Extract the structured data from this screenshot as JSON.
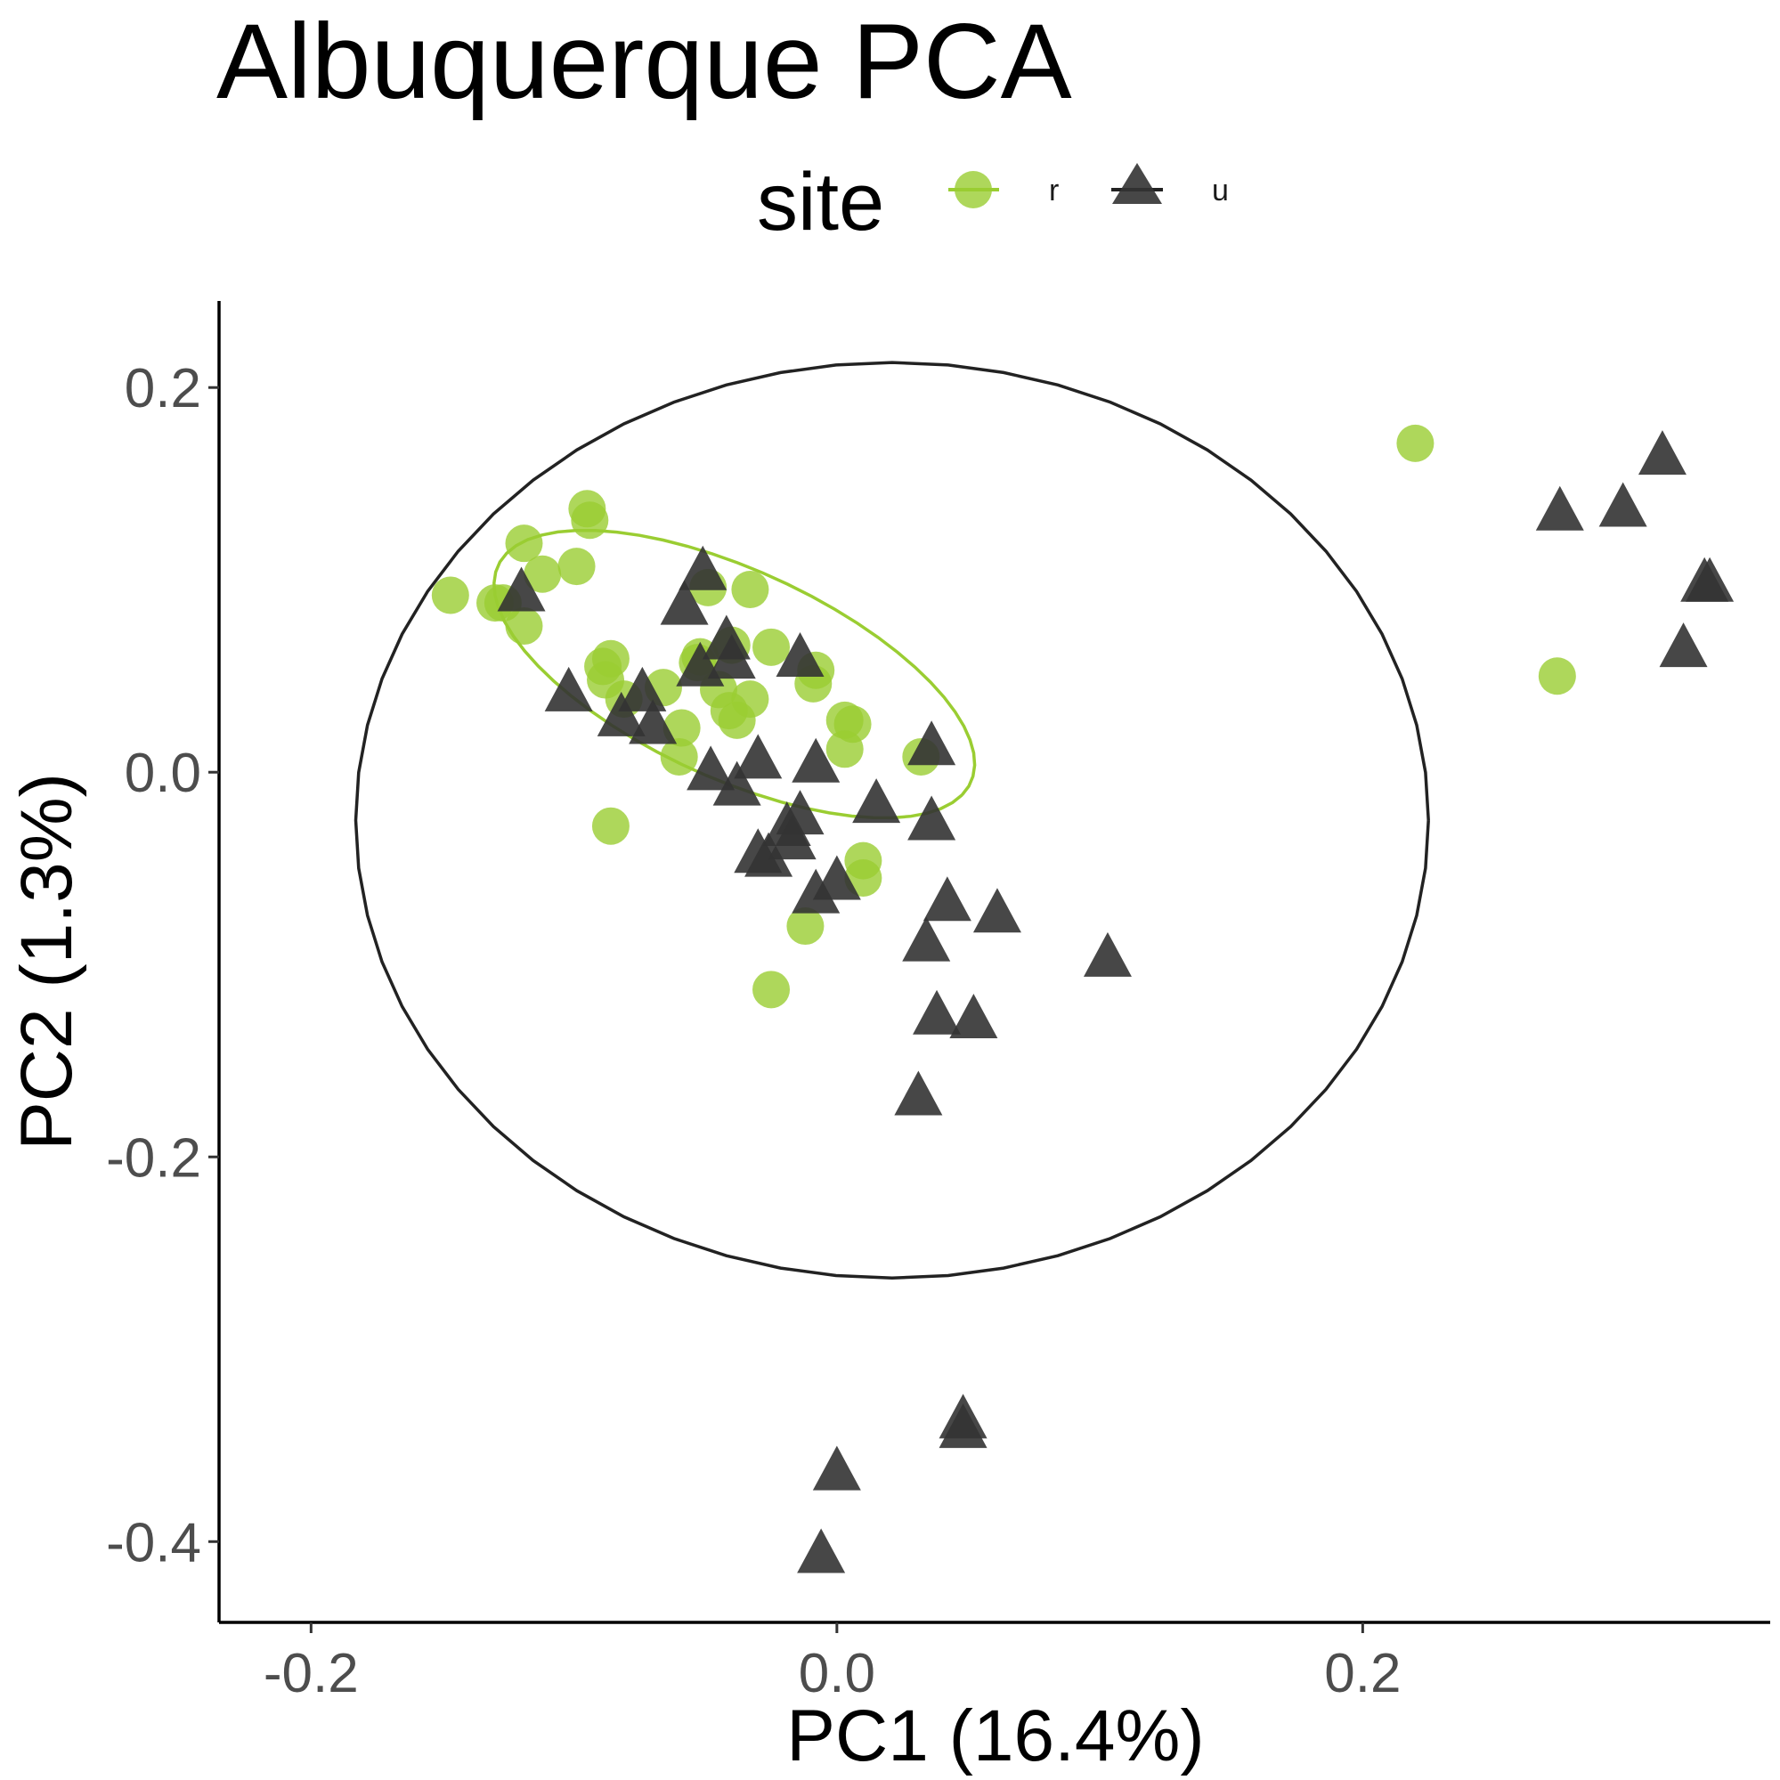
{
  "chart_data": {
    "type": "scatter",
    "title": "Albuquerque PCA",
    "xlabel": "PC1 (16.4%)",
    "ylabel": "PC2 (1.3%)",
    "xlim": [
      -0.235,
      0.355
    ],
    "ylim": [
      -0.442,
      0.245
    ],
    "xticks": [
      -0.2,
      0.0,
      0.2
    ],
    "xtick_labels": [
      "-0.2",
      "0.0",
      "0.2"
    ],
    "yticks": [
      0.2,
      0.0,
      -0.2,
      -0.4
    ],
    "ytick_labels": [
      "0.2",
      "0.0",
      "-0.2",
      "-0.4"
    ],
    "grid": false,
    "legend": {
      "title": "site",
      "position": "top",
      "entries": [
        {
          "label": "r",
          "shape": "circle",
          "color": "#9acd32"
        },
        {
          "label": "u",
          "shape": "triangle",
          "color": "#333333"
        }
      ]
    },
    "series": [
      {
        "name": "r",
        "shape": "circle",
        "color": "#9acd32",
        "points": [
          [
            -0.147,
            0.092
          ],
          [
            -0.13,
            0.088
          ],
          [
            -0.127,
            0.088
          ],
          [
            -0.119,
            0.119
          ],
          [
            -0.119,
            0.076
          ],
          [
            -0.112,
            0.103
          ],
          [
            -0.099,
            0.107
          ],
          [
            -0.095,
            0.137
          ],
          [
            -0.094,
            0.131
          ],
          [
            -0.086,
            0.059
          ],
          [
            -0.089,
            0.055
          ],
          [
            -0.088,
            0.048
          ],
          [
            -0.081,
            0.038
          ],
          [
            -0.066,
            0.044
          ],
          [
            -0.059,
            0.023
          ],
          [
            -0.06,
            0.008
          ],
          [
            -0.053,
            0.057
          ],
          [
            -0.052,
            0.06
          ],
          [
            -0.049,
            0.096
          ],
          [
            -0.045,
            0.043
          ],
          [
            -0.04,
            0.066
          ],
          [
            -0.041,
            0.032
          ],
          [
            -0.038,
            0.027
          ],
          [
            -0.033,
            0.095
          ],
          [
            -0.033,
            0.038
          ],
          [
            -0.025,
            0.065
          ],
          [
            -0.008,
            0.053
          ],
          [
            -0.009,
            0.046
          ],
          [
            0.003,
            0.027
          ],
          [
            0.006,
            0.025
          ],
          [
            0.003,
            0.012
          ],
          [
            0.032,
            0.008
          ],
          [
            -0.086,
            -0.028
          ],
          [
            0.01,
            -0.046
          ],
          [
            0.01,
            -0.055
          ],
          [
            -0.012,
            -0.08
          ],
          [
            -0.025,
            -0.113
          ],
          [
            0.22,
            0.171
          ],
          [
            0.274,
            0.05
          ]
        ]
      },
      {
        "name": "u",
        "shape": "triangle",
        "color": "#333333",
        "points": [
          [
            -0.12,
            0.092
          ],
          [
            -0.102,
            0.04
          ],
          [
            -0.082,
            0.027
          ],
          [
            -0.074,
            0.04
          ],
          [
            -0.07,
            0.023
          ],
          [
            -0.058,
            0.085
          ],
          [
            -0.052,
            0.053
          ],
          [
            -0.051,
            0.103
          ],
          [
            -0.048,
            -0.001
          ],
          [
            -0.042,
            0.067
          ],
          [
            -0.04,
            0.057
          ],
          [
            -0.038,
            -0.009
          ],
          [
            -0.03,
            0.005
          ],
          [
            -0.03,
            -0.044
          ],
          [
            -0.026,
            -0.046
          ],
          [
            -0.019,
            -0.03
          ],
          [
            -0.017,
            -0.037
          ],
          [
            -0.014,
            -0.024
          ],
          [
            -0.014,
            0.058
          ],
          [
            -0.008,
            0.003
          ],
          [
            -0.008,
            -0.065
          ],
          [
            0.0,
            -0.058
          ],
          [
            0.015,
            -0.018
          ],
          [
            0.036,
            0.012
          ],
          [
            0.036,
            -0.027
          ],
          [
            0.042,
            -0.069
          ],
          [
            0.034,
            -0.09
          ],
          [
            0.061,
            -0.075
          ],
          [
            0.103,
            -0.098
          ],
          [
            0.038,
            -0.128
          ],
          [
            0.052,
            -0.13
          ],
          [
            0.031,
            -0.17
          ],
          [
            0.048,
            -0.338
          ],
          [
            0.048,
            -0.343
          ],
          [
            0.0,
            -0.365
          ],
          [
            -0.006,
            -0.408
          ],
          [
            0.275,
            0.134
          ],
          [
            0.299,
            0.136
          ],
          [
            0.314,
            0.163
          ],
          [
            0.33,
            0.097
          ],
          [
            0.332,
            0.097
          ],
          [
            0.322,
            0.063
          ]
        ]
      }
    ],
    "ellipses": [
      {
        "series": "r",
        "color": "#9acd32",
        "center": [
          -0.039,
          0.051
        ],
        "semi_axes": [
          0.107,
          0.05
        ],
        "angle_deg": -36
      },
      {
        "series": "u",
        "color": "#222222",
        "center": [
          0.021,
          -0.025
        ],
        "semi_axes": [
          0.204,
          0.238
        ],
        "angle_deg": 0
      }
    ]
  }
}
